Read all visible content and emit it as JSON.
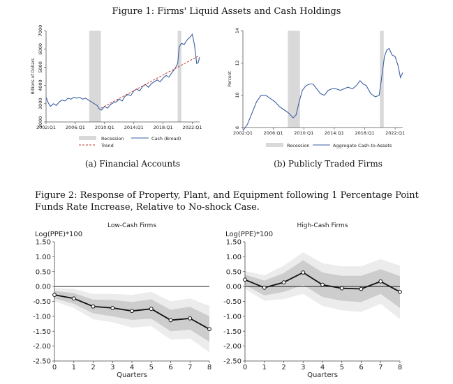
{
  "figure1": {
    "title": "Figure 1: Firms' Liquid Assets and Cash Holdings",
    "panel_a_caption": "(a) Financial Accounts",
    "panel_b_caption": "(b) Publicly Traded Firms"
  },
  "figure2": {
    "title": "Figure 2: Response of Property, Plant, and Equipment following 1 Percentage Point Funds Rate Increase, Relative to No-shock Case."
  },
  "colors": {
    "line_blue": "#3b5fa3",
    "trend_red": "#c0392b",
    "recession_gray": "#d9d9d9",
    "band_outer": "#ececec",
    "band_inner": "#cdcdcd"
  },
  "chart_data": [
    {
      "id": "fig1a",
      "type": "line",
      "ylabel": "Billions of Dollars",
      "ylim": [
        2000,
        7000
      ],
      "yticks": [
        "2000",
        "3000",
        "4000",
        "5000",
        "6000",
        "7000"
      ],
      "xlim": [
        2002.0,
        2023.0
      ],
      "xticks": [
        {
          "label": "2002:Q1",
          "x": 2002.0
        },
        {
          "label": "2006:Q1",
          "x": 2006.0
        },
        {
          "label": "2010:Q1",
          "x": 2010.0
        },
        {
          "label": "2014:Q1",
          "x": 2014.0
        },
        {
          "label": "2018:Q1",
          "x": 2018.0
        },
        {
          "label": "2022:Q1",
          "x": 2022.0
        }
      ],
      "recessions": [
        [
          2007.9,
          2009.5
        ],
        [
          2020.0,
          2020.5
        ]
      ],
      "legend": [
        "Recession",
        "Cash (Broad)",
        "Trend"
      ],
      "series": [
        {
          "name": "Cash (Broad)",
          "points": [
            [
              2002.0,
              3350
            ],
            [
              2002.3,
              3050
            ],
            [
              2002.6,
              2850
            ],
            [
              2003.0,
              3000
            ],
            [
              2003.4,
              2900
            ],
            [
              2003.8,
              3100
            ],
            [
              2004.2,
              3200
            ],
            [
              2004.6,
              3150
            ],
            [
              2005.0,
              3300
            ],
            [
              2005.4,
              3250
            ],
            [
              2005.8,
              3350
            ],
            [
              2006.2,
              3300
            ],
            [
              2006.6,
              3350
            ],
            [
              2007.0,
              3250
            ],
            [
              2007.4,
              3300
            ],
            [
              2007.8,
              3200
            ],
            [
              2008.2,
              3100
            ],
            [
              2008.6,
              3000
            ],
            [
              2009.0,
              2900
            ],
            [
              2009.3,
              2700
            ],
            [
              2009.6,
              2650
            ],
            [
              2010.0,
              2850
            ],
            [
              2010.4,
              2750
            ],
            [
              2010.8,
              2950
            ],
            [
              2011.2,
              3050
            ],
            [
              2011.6,
              3100
            ],
            [
              2012.0,
              3250
            ],
            [
              2012.4,
              3150
            ],
            [
              2012.8,
              3400
            ],
            [
              2013.2,
              3500
            ],
            [
              2013.6,
              3450
            ],
            [
              2014.0,
              3700
            ],
            [
              2014.4,
              3800
            ],
            [
              2014.8,
              3700
            ],
            [
              2015.2,
              3950
            ],
            [
              2015.6,
              4050
            ],
            [
              2016.0,
              3900
            ],
            [
              2016.4,
              4100
            ],
            [
              2016.8,
              4200
            ],
            [
              2017.2,
              4300
            ],
            [
              2017.6,
              4200
            ],
            [
              2018.0,
              4400
            ],
            [
              2018.4,
              4550
            ],
            [
              2018.8,
              4450
            ],
            [
              2019.2,
              4700
            ],
            [
              2019.6,
              4900
            ],
            [
              2020.0,
              5200
            ],
            [
              2020.2,
              6100
            ],
            [
              2020.5,
              6300
            ],
            [
              2020.9,
              6250
            ],
            [
              2021.3,
              6500
            ],
            [
              2021.7,
              6650
            ],
            [
              2022.0,
              6800
            ],
            [
              2022.3,
              6200
            ],
            [
              2022.6,
              5200
            ],
            [
              2022.8,
              5250
            ],
            [
              2023.0,
              5550
            ]
          ]
        },
        {
          "name": "Trend",
          "points": [
            [
              2009.5,
              2750
            ],
            [
              2022.8,
              5600
            ]
          ]
        }
      ]
    },
    {
      "id": "fig1b",
      "type": "line",
      "ylabel": "Percent",
      "ylim": [
        8,
        14
      ],
      "yticks": [
        "8",
        "10",
        "12",
        "14"
      ],
      "xlim": [
        2002.0,
        2023.0
      ],
      "xticks": [
        {
          "label": "2002:Q1",
          "x": 2002.0
        },
        {
          "label": "2006:Q1",
          "x": 2006.0
        },
        {
          "label": "2010:Q1",
          "x": 2010.0
        },
        {
          "label": "2014:Q1",
          "x": 2014.0
        },
        {
          "label": "2018:Q1",
          "x": 2018.0
        },
        {
          "label": "2022:Q1",
          "x": 2022.0
        }
      ],
      "recessions": [
        [
          2007.9,
          2009.5
        ],
        [
          2020.0,
          2020.5
        ]
      ],
      "legend": [
        "Recession",
        "Aggregate Cash-to-Assets"
      ],
      "series": [
        {
          "name": "Aggregate Cash-to-Assets",
          "points": [
            [
              2002.0,
              7.8
            ],
            [
              2002.6,
              8.2
            ],
            [
              2003.2,
              8.9
            ],
            [
              2003.8,
              9.6
            ],
            [
              2004.4,
              10.0
            ],
            [
              2005.0,
              10.0
            ],
            [
              2005.6,
              9.8
            ],
            [
              2006.2,
              9.6
            ],
            [
              2006.8,
              9.3
            ],
            [
              2007.4,
              9.1
            ],
            [
              2008.0,
              8.9
            ],
            [
              2008.6,
              8.6
            ],
            [
              2009.0,
              8.8
            ],
            [
              2009.4,
              9.6
            ],
            [
              2009.8,
              10.3
            ],
            [
              2010.3,
              10.6
            ],
            [
              2010.8,
              10.7
            ],
            [
              2011.2,
              10.7
            ],
            [
              2011.7,
              10.4
            ],
            [
              2012.2,
              10.1
            ],
            [
              2012.7,
              10.0
            ],
            [
              2013.2,
              10.3
            ],
            [
              2013.7,
              10.4
            ],
            [
              2014.2,
              10.4
            ],
            [
              2014.8,
              10.3
            ],
            [
              2015.3,
              10.4
            ],
            [
              2015.8,
              10.5
            ],
            [
              2016.4,
              10.4
            ],
            [
              2016.9,
              10.6
            ],
            [
              2017.4,
              10.9
            ],
            [
              2017.8,
              10.7
            ],
            [
              2018.2,
              10.6
            ],
            [
              2018.8,
              10.1
            ],
            [
              2019.4,
              9.9
            ],
            [
              2019.9,
              10.0
            ],
            [
              2020.2,
              11.0
            ],
            [
              2020.6,
              12.4
            ],
            [
              2020.9,
              12.8
            ],
            [
              2021.2,
              12.9
            ],
            [
              2021.6,
              12.5
            ],
            [
              2022.0,
              12.4
            ],
            [
              2022.4,
              11.8
            ],
            [
              2022.7,
              11.1
            ],
            [
              2023.0,
              11.4
            ]
          ]
        }
      ]
    },
    {
      "id": "fig2-low",
      "type": "line",
      "title": "Low-Cash Firms",
      "ylabel": "Log(PPE)*100",
      "xlabel": "Quarters",
      "ylim": [
        -2.5,
        1.5
      ],
      "yticks": [
        "1.50",
        "1.00",
        "0.50",
        "0.00",
        "-0.50",
        "-1.00",
        "-1.50",
        "-2.00",
        "-2.50"
      ],
      "xticks": [
        "0",
        "1",
        "2",
        "3",
        "4",
        "5",
        "6",
        "7",
        "8"
      ],
      "x": [
        0,
        1,
        2,
        3,
        4,
        5,
        6,
        7,
        8
      ],
      "values": [
        -0.28,
        -0.4,
        -0.67,
        -0.72,
        -0.82,
        -0.75,
        -1.13,
        -1.07,
        -1.43
      ],
      "inner_band": {
        "lower": [
          -0.4,
          -0.58,
          -0.9,
          -1.0,
          -1.12,
          -1.08,
          -1.5,
          -1.45,
          -1.85
        ],
        "upper": [
          -0.15,
          -0.22,
          -0.44,
          -0.45,
          -0.52,
          -0.43,
          -0.78,
          -0.68,
          -1.0
        ]
      },
      "outer_band": {
        "lower": [
          -0.5,
          -0.72,
          -1.1,
          -1.2,
          -1.38,
          -1.33,
          -1.78,
          -1.75,
          -2.2
        ],
        "upper": [
          -0.05,
          -0.08,
          -0.25,
          -0.25,
          -0.28,
          -0.18,
          -0.5,
          -0.4,
          -0.65
        ]
      }
    },
    {
      "id": "fig2-high",
      "type": "line",
      "title": "High-Cash Firms",
      "ylabel": "Log(PPE)*100",
      "xlabel": "Quarters",
      "ylim": [
        -2.5,
        1.5
      ],
      "yticks": [
        "1.50",
        "1.00",
        "0.50",
        "0.00",
        "-0.50",
        "-1.00",
        "-1.50",
        "-2.00",
        "-2.50"
      ],
      "xticks": [
        "0",
        "1",
        "2",
        "3",
        "4",
        "5",
        "6",
        "7",
        "8"
      ],
      "x": [
        0,
        1,
        2,
        3,
        4,
        5,
        6,
        7,
        8
      ],
      "values": [
        0.23,
        -0.04,
        0.14,
        0.47,
        0.06,
        -0.06,
        -0.08,
        0.17,
        -0.18
      ],
      "inner_band": {
        "lower": [
          0.05,
          -0.3,
          -0.18,
          0.05,
          -0.35,
          -0.48,
          -0.52,
          -0.25,
          -0.72
        ],
        "upper": [
          0.4,
          0.2,
          0.45,
          0.88,
          0.47,
          0.36,
          0.36,
          0.58,
          0.35
        ]
      },
      "outer_band": {
        "lower": [
          -0.08,
          -0.48,
          -0.42,
          -0.25,
          -0.65,
          -0.8,
          -0.85,
          -0.58,
          -1.1
        ],
        "upper": [
          0.52,
          0.38,
          0.7,
          1.15,
          0.78,
          0.68,
          0.68,
          0.92,
          0.7
        ]
      }
    }
  ]
}
